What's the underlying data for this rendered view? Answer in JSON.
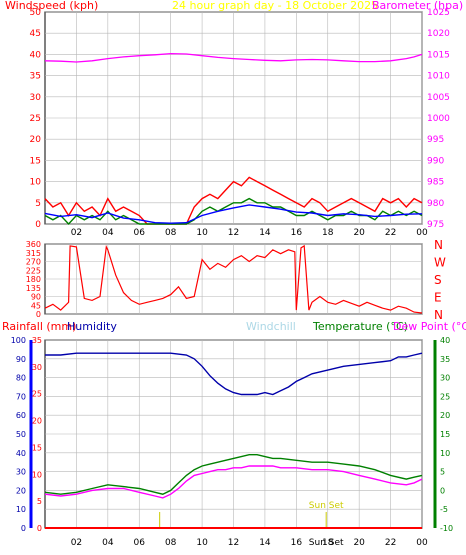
{
  "title": "24 hour graph day - 18 October 2025",
  "colors": {
    "background": "#ffffff",
    "plot_background": "#ffffff",
    "grid": "#b8b8b8",
    "frame": "#000000",
    "wind": "#ff0000",
    "gust_dark": "#000080",
    "gust_green": "#008000",
    "gust_blue": "#0000ff",
    "barometer": "#ff00ff",
    "direction": "#ff0000",
    "dir_letters": "#ff0000",
    "rainfall": "#ff0000",
    "humidity": "#0000aa",
    "windchill": "#add8e6",
    "temperature": "#008000",
    "dewpoint": "#ff00ff",
    "title": "#ffff00",
    "sun": "#cccc00",
    "left_axis_bar": "#0000ff",
    "right_axis_bar": "#008000"
  },
  "chart_data": [
    {
      "type": "line",
      "panel": "wind-barometer",
      "ylabel_left": "Windspeed (kph)",
      "ylabel_right": "Barometer (hpa)",
      "ylim_left": [
        0,
        50
      ],
      "yticks_left": [
        "0",
        "5",
        "10",
        "15",
        "20",
        "25",
        "30",
        "35",
        "40",
        "45",
        "50"
      ],
      "ylim_right": [
        975,
        1025
      ],
      "yticks_right": [
        "975",
        "980",
        "985",
        "990",
        "995",
        "1000",
        "1005",
        "1010",
        "1015",
        "1020",
        "1025"
      ],
      "xlim": [
        0,
        24
      ],
      "xticks": [
        "02",
        "04",
        "06",
        "08",
        "10",
        "12",
        "14",
        "16",
        "18",
        "20",
        "22",
        "00"
      ],
      "xtick_hours": [
        2,
        4,
        6,
        8,
        10,
        12,
        14,
        16,
        18,
        20,
        22,
        24
      ],
      "grid": true,
      "series": [
        {
          "name": "Barometer",
          "axis": "right",
          "color_key": "barometer",
          "x": [
            0,
            1,
            2,
            3,
            4,
            5,
            6,
            7,
            8,
            9,
            10,
            11,
            12,
            13,
            14,
            15,
            16,
            17,
            18,
            19,
            20,
            21,
            22,
            23,
            23.5,
            24
          ],
          "y": [
            1013.5,
            1013.4,
            1013.2,
            1013.5,
            1014.0,
            1014.4,
            1014.7,
            1014.9,
            1015.2,
            1015.1,
            1014.7,
            1014.3,
            1014.0,
            1013.8,
            1013.6,
            1013.5,
            1013.7,
            1013.8,
            1013.7,
            1013.5,
            1013.3,
            1013.3,
            1013.5,
            1014.0,
            1014.4,
            1015.0
          ]
        },
        {
          "name": "Wind Gust",
          "axis": "left",
          "color_key": "wind",
          "x": [
            0,
            0.5,
            1,
            1.5,
            2,
            2.5,
            3,
            3.5,
            4,
            4.5,
            5,
            5.5,
            6,
            6.5,
            7,
            7.5,
            8,
            8.5,
            9,
            9.5,
            10,
            10.5,
            11,
            11.5,
            12,
            12.5,
            13,
            13.5,
            14,
            14.5,
            15,
            15.5,
            16,
            16.5,
            17,
            17.5,
            18,
            18.5,
            19,
            19.5,
            20,
            20.5,
            21,
            21.5,
            22,
            22.5,
            23,
            23.5,
            24
          ],
          "y": [
            6,
            4,
            5,
            2,
            5,
            3,
            4,
            2,
            6,
            3,
            4,
            3,
            2,
            0,
            0,
            0,
            0,
            0,
            0,
            4,
            6,
            7,
            6,
            8,
            10,
            9,
            11,
            10,
            9,
            8,
            7,
            6,
            5,
            4,
            6,
            5,
            3,
            4,
            5,
            6,
            5,
            4,
            3,
            6,
            5,
            6,
            4,
            6,
            5
          ]
        },
        {
          "name": "Average Wind",
          "axis": "left",
          "color_key": "gust_green",
          "x": [
            0,
            0.5,
            1,
            1.5,
            2,
            2.5,
            3,
            3.5,
            4,
            4.5,
            5,
            5.5,
            6,
            6.5,
            7,
            7.5,
            8,
            8.5,
            9,
            9.5,
            10,
            10.5,
            11,
            11.5,
            12,
            12.5,
            13,
            13.5,
            14,
            14.5,
            15,
            15.5,
            16,
            16.5,
            17,
            17.5,
            18,
            18.5,
            19,
            19.5,
            20,
            20.5,
            21,
            21.5,
            22,
            22.5,
            23,
            23.5,
            24
          ],
          "y": [
            2,
            1,
            2,
            0,
            2,
            1,
            2,
            1,
            3,
            1,
            2,
            1,
            0,
            0,
            0,
            0,
            0,
            0,
            0,
            1,
            3,
            4,
            3,
            4,
            5,
            5,
            6,
            5,
            5,
            4,
            4,
            3,
            2,
            2,
            3,
            2,
            1,
            2,
            2,
            3,
            2,
            2,
            1,
            3,
            2,
            3,
            2,
            3,
            2
          ]
        },
        {
          "name": "Wind Speed",
          "axis": "left",
          "color_key": "gust_blue",
          "x": [
            0,
            1,
            2,
            3,
            4,
            5,
            6,
            7,
            8,
            9,
            10,
            11,
            12,
            13,
            14,
            15,
            16,
            17,
            18,
            19,
            20,
            21,
            22,
            23,
            24
          ],
          "y": [
            2.5,
            1.8,
            2.2,
            1.5,
            2.6,
            1.4,
            1.0,
            0.3,
            0.2,
            0.3,
            2.0,
            3.0,
            3.8,
            4.5,
            4.0,
            3.5,
            2.8,
            2.6,
            2.0,
            2.4,
            2.2,
            1.8,
            2.0,
            2.3,
            2.4
          ]
        }
      ]
    },
    {
      "type": "line",
      "panel": "wind-direction",
      "ylim": [
        0,
        360
      ],
      "yticks": [
        "0",
        "45",
        "90",
        "135",
        "180",
        "225",
        "270",
        "315",
        "360"
      ],
      "direction_labels": [
        "N",
        "W",
        "S",
        "E",
        "N"
      ],
      "xlim": [
        0,
        24
      ],
      "grid": true,
      "series": [
        {
          "name": "Wind Direction",
          "color_key": "direction",
          "x": [
            0,
            0.5,
            1,
            1.5,
            1.6,
            2,
            2.5,
            3,
            3.5,
            3.9,
            4,
            4.5,
            5,
            5.5,
            6,
            6.5,
            7,
            7.5,
            8,
            8.5,
            9,
            9.5,
            10,
            10.5,
            11,
            11.5,
            12,
            12.5,
            13,
            13.5,
            14,
            14.5,
            15,
            15.5,
            15.9,
            16,
            16.3,
            16.5,
            16.8,
            17,
            17.5,
            18,
            18.5,
            19,
            19.5,
            20,
            20.5,
            21,
            21.5,
            22,
            22.5,
            23,
            23.5,
            24
          ],
          "y": [
            30,
            50,
            20,
            60,
            350,
            345,
            80,
            70,
            90,
            345,
            330,
            200,
            110,
            70,
            50,
            60,
            70,
            80,
            100,
            140,
            80,
            90,
            280,
            230,
            260,
            240,
            280,
            300,
            270,
            300,
            290,
            330,
            310,
            330,
            320,
            20,
            340,
            350,
            20,
            60,
            90,
            60,
            50,
            70,
            55,
            40,
            60,
            45,
            30,
            20,
            40,
            30,
            10,
            5
          ]
        }
      ]
    },
    {
      "type": "line",
      "panel": "rain-humidity-temperature",
      "labels": {
        "rainfall": "Rainfall (mm)",
        "humidity": "Humidity",
        "windchill": "Windchill",
        "temperature": "Temperature (°C)",
        "dewpoint": "Dew Point (°C)"
      },
      "ylim_rain": [
        0,
        35
      ],
      "yticks_rain": [
        "0",
        "5",
        "10",
        "15",
        "20",
        "25",
        "30",
        "35"
      ],
      "ylim_humidity": [
        0,
        100
      ],
      "yticks_humidity": [
        "0",
        "10",
        "20",
        "30",
        "40",
        "50",
        "60",
        "70",
        "80",
        "90",
        "100"
      ],
      "ylim_temp": [
        -10,
        40
      ],
      "yticks_temp": [
        "-10",
        "-5",
        "0",
        "5",
        "10",
        "15",
        "20",
        "25",
        "30",
        "35",
        "40"
      ],
      "xlim": [
        0,
        24
      ],
      "xticks": [
        "02",
        "04",
        "06",
        "08",
        "10",
        "12",
        "14",
        "16",
        "18",
        "20",
        "22",
        "00"
      ],
      "xtick_hours": [
        2,
        4,
        6,
        8,
        10,
        12,
        14,
        16,
        18,
        20,
        22,
        24
      ],
      "sun_labels": {
        "sunset": "Sun Set",
        "sunset_short": "Sun Set"
      },
      "sunrise_hour": 7.3,
      "sunset_hour": 17.9,
      "grid": true,
      "series": [
        {
          "name": "Humidity",
          "axis": "humidity",
          "color_key": "humidity",
          "x": [
            0,
            1,
            2,
            3,
            4,
            5,
            6,
            7,
            8,
            9,
            9.5,
            10,
            10.5,
            11,
            11.5,
            12,
            12.5,
            13,
            13.5,
            14,
            14.5,
            15,
            15.5,
            16,
            16.5,
            17,
            18,
            19,
            20,
            21,
            22,
            22.5,
            23,
            23.5,
            24
          ],
          "y": [
            92,
            92,
            93,
            93,
            93,
            93,
            93,
            93,
            93,
            92,
            90,
            86,
            81,
            77,
            74,
            72,
            71,
            71,
            71,
            72,
            71,
            73,
            75,
            78,
            80,
            82,
            84,
            86,
            87,
            88,
            89,
            91,
            91,
            92,
            93
          ]
        },
        {
          "name": "Temperature",
          "axis": "temp",
          "color_key": "temperature",
          "x": [
            0,
            1,
            2,
            3,
            4,
            5,
            6,
            7,
            7.5,
            8,
            8.5,
            9,
            9.5,
            10,
            10.5,
            11,
            11.5,
            12,
            12.5,
            13,
            13.5,
            14,
            14.5,
            15,
            16,
            17,
            18,
            19,
            20,
            21,
            22,
            23,
            23.5,
            24
          ],
          "y": [
            -0.5,
            -1,
            -0.5,
            0.5,
            1.5,
            1,
            0.5,
            -0.5,
            -1,
            0,
            2,
            4,
            5.5,
            6.5,
            7,
            7.5,
            8,
            8.5,
            9,
            9.5,
            9.5,
            9,
            8.5,
            8.5,
            8,
            7.5,
            7.5,
            7,
            6.5,
            5.5,
            4,
            3,
            3.5,
            4
          ]
        },
        {
          "name": "Dew Point",
          "axis": "temp",
          "color_key": "dewpoint",
          "x": [
            0,
            1,
            2,
            3,
            4,
            5,
            6,
            7,
            7.5,
            8,
            8.5,
            9,
            9.5,
            10,
            10.5,
            11,
            11.5,
            12,
            12.5,
            13,
            13.5,
            14,
            14.5,
            15,
            16,
            17,
            18,
            19,
            20,
            21,
            22,
            23,
            23.5,
            24
          ],
          "y": [
            -1,
            -1.5,
            -1,
            0,
            0.5,
            0.5,
            -0.5,
            -1.5,
            -2,
            -1,
            0.5,
            2.5,
            4,
            4.5,
            5,
            5.5,
            5.5,
            6,
            6,
            6.5,
            6.5,
            6.5,
            6.5,
            6,
            6,
            5.5,
            5.5,
            5,
            4,
            3,
            2,
            1.5,
            2,
            3
          ]
        },
        {
          "name": "Rainfall",
          "axis": "rain",
          "color_key": "rainfall",
          "x": [
            0,
            24
          ],
          "y": [
            0,
            0
          ]
        }
      ]
    }
  ]
}
